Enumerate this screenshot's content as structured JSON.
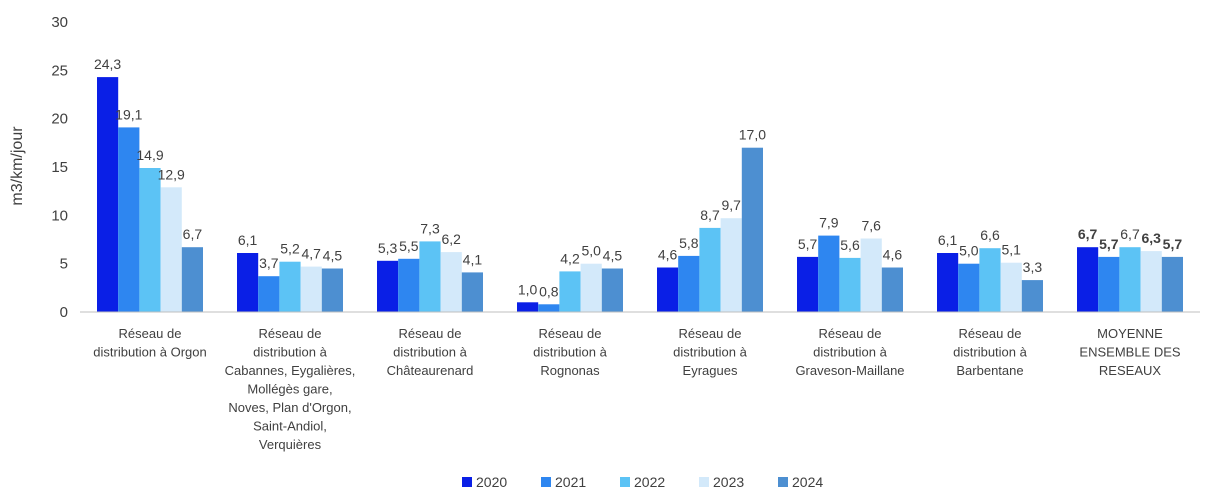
{
  "chart_data": {
    "type": "bar",
    "title": "",
    "xlabel": "",
    "ylabel": "m3/km/jour",
    "ylim": [
      0,
      30
    ],
    "yticks": [
      0,
      5,
      10,
      15,
      20,
      25,
      30
    ],
    "grid": false,
    "legend_position": "bottom",
    "categories": [
      [
        "Réseau de",
        "distribution à Orgon"
      ],
      [
        "Réseau de",
        "distribution à",
        "Cabannes, Eygalières,",
        "Mollégès gare,",
        "Noves, Plan d'Orgon,",
        "Saint-Andiol,",
        "Verquières"
      ],
      [
        "Réseau de",
        "distribution à",
        "Châteaurenard"
      ],
      [
        "Réseau de",
        "distribution à",
        "Rognonas"
      ],
      [
        "Réseau de",
        "distribution à",
        "Eyragues"
      ],
      [
        "Réseau de",
        "distribution à",
        "Graveson-Maillane"
      ],
      [
        "Réseau de",
        "distribution à",
        "Barbentane"
      ],
      [
        "MOYENNE",
        "ENSEMBLE DES",
        "RESEAUX"
      ]
    ],
    "series": [
      {
        "name": "2020",
        "color": "#0a1fe6",
        "values": [
          24.3,
          6.1,
          5.3,
          1.0,
          4.6,
          5.7,
          6.1,
          6.7
        ],
        "labels": [
          "24,3",
          "6,1",
          "5,3",
          "1,0",
          "4,6",
          "5,7",
          "6,1",
          "6,7"
        ]
      },
      {
        "name": "2021",
        "color": "#2e86f0",
        "values": [
          19.1,
          3.7,
          5.5,
          0.8,
          5.8,
          7.9,
          5.0,
          5.7
        ],
        "labels": [
          "19,1",
          "3,7",
          "5,5",
          "0,8",
          "5,8",
          "7,9",
          "5,0",
          "5,7"
        ]
      },
      {
        "name": "2022",
        "color": "#5cc3f5",
        "values": [
          14.9,
          5.2,
          7.3,
          4.2,
          8.7,
          5.6,
          6.6,
          6.7
        ],
        "labels": [
          "14,9",
          "5,2",
          "7,3",
          "4,2",
          "8,7",
          "5,6",
          "6,6",
          "6,7"
        ]
      },
      {
        "name": "2023",
        "color": "#d3e9fa",
        "values": [
          12.9,
          4.7,
          6.2,
          5.0,
          9.7,
          7.6,
          5.1,
          6.3
        ],
        "labels": [
          "12,9",
          "4,7",
          "6,2",
          "5,0",
          "9,7",
          "7,6",
          "5,1",
          "6,3"
        ]
      },
      {
        "name": "2024",
        "color": "#4d8fd1",
        "values": [
          6.7,
          4.5,
          4.1,
          4.5,
          17.0,
          4.6,
          3.3,
          5.7
        ],
        "labels": [
          "6,7",
          "4,5",
          "4,1",
          "4,5",
          "17,0",
          "4,6",
          "3,3",
          "5,7"
        ]
      }
    ]
  }
}
